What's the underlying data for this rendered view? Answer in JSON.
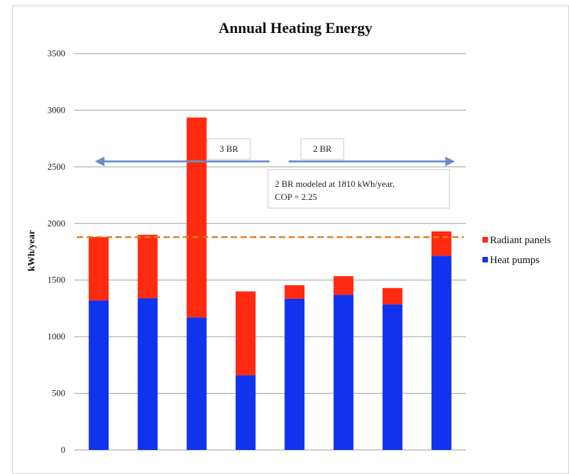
{
  "chart_data": {
    "type": "bar",
    "stacked": true,
    "title": "Annual Heating Energy",
    "xlabel": "",
    "ylabel": "kWh/year",
    "ylim": [
      0,
      3500
    ],
    "yticks": [
      0,
      500,
      1000,
      1500,
      2000,
      2500,
      3000,
      3500
    ],
    "grid": true,
    "legend_position": "right",
    "categories": [
      "",
      "",
      "",
      "",
      "",
      "",
      "",
      ""
    ],
    "series": [
      {
        "name": "Heat pumps",
        "color": "#1133ee",
        "values": [
          1320,
          1340,
          1170,
          660,
          1335,
          1370,
          1285,
          1715
        ]
      },
      {
        "name": "Radiant panels",
        "color": "#ff2a0f",
        "values": [
          560,
          560,
          1765,
          740,
          120,
          165,
          145,
          215
        ]
      }
    ],
    "reference_line": {
      "value": 1880,
      "color": "#e07b1a",
      "style": "dashed"
    },
    "annotations": {
      "label_3br": "3 BR",
      "label_2br": "2 BR",
      "note_line1": "2 BR modeled at 1810 kWh/year,",
      "note_line2": "COP = 2.25",
      "arrow_color": "#6b8fc4"
    }
  }
}
